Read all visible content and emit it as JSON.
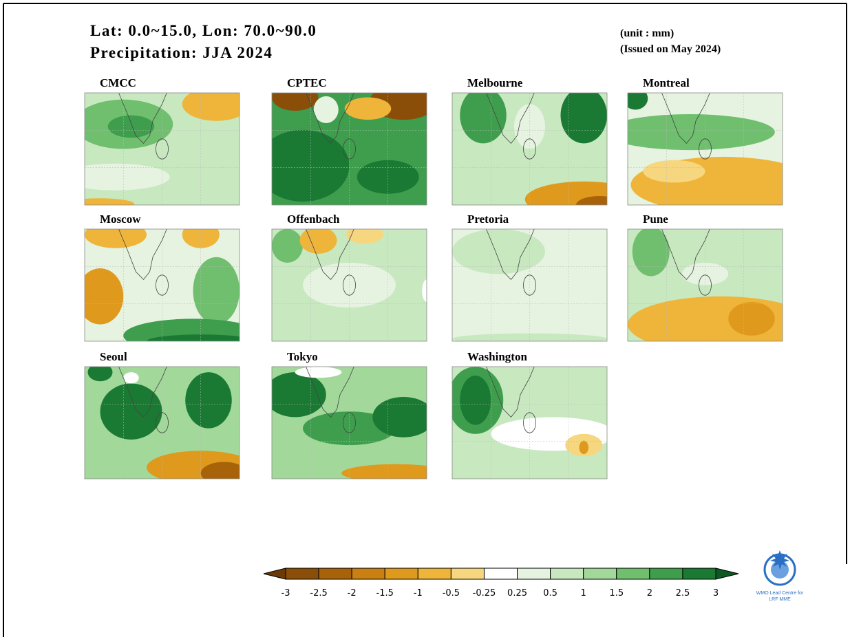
{
  "header": {
    "title_line1": "Lat: 0.0~15.0, Lon: 70.0~90.0",
    "title_line2": "Precipitation: JJA 2024",
    "unit": "(unit : mm)",
    "issued": "(Issued on May 2024)"
  },
  "panels": [
    {
      "label": "CMCC"
    },
    {
      "label": "CPTEC"
    },
    {
      "label": "Melbourne"
    },
    {
      "label": "Montreal"
    },
    {
      "label": "Moscow"
    },
    {
      "label": "Offenbach"
    },
    {
      "label": "Pretoria"
    },
    {
      "label": "Pune"
    },
    {
      "label": "Seoul"
    },
    {
      "label": "Tokyo"
    },
    {
      "label": "Washington"
    }
  ],
  "colorbar": {
    "labels": [
      "-3",
      "-2.5",
      "-2",
      "-1.5",
      "-1",
      "-0.5",
      "-0.25",
      "0.25",
      "0.5",
      "1",
      "1.5",
      "2",
      "2.5",
      "3"
    ],
    "colors": [
      "#8a4e08",
      "#a8620a",
      "#c97f12",
      "#df9a1d",
      "#eeb53a",
      "#f6d77f",
      "#ffffff",
      "#e5f3e0",
      "#c8e8c0",
      "#a2d89a",
      "#6fbf6e",
      "#3f9e4d",
      "#1a7a33"
    ],
    "extend_low": "#6b3a06",
    "extend_high": "#0c5a22"
  },
  "logo": {
    "line1": "WMO Lead Centre for",
    "line2": "LRF MME"
  }
}
